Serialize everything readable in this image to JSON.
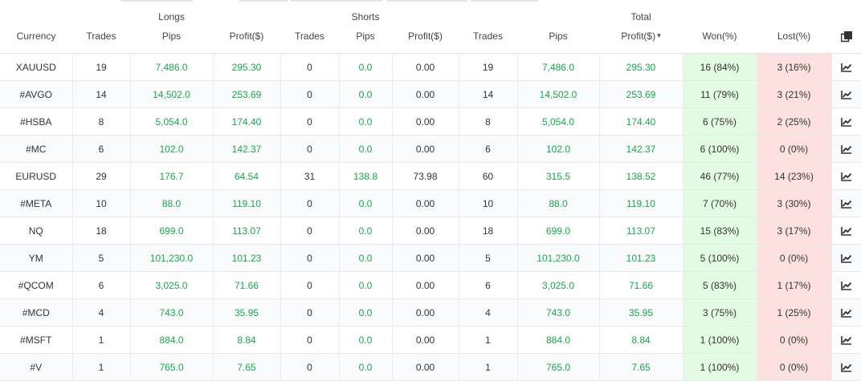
{
  "header": {
    "groups": {
      "longs": "Longs",
      "shorts": "Shorts",
      "total": "Total"
    },
    "columns": {
      "currency": "Currency",
      "long_trades": "Trades",
      "long_pips": "Pips",
      "long_profit": "Profit($)",
      "short_trades": "Trades",
      "short_pips": "Pips",
      "short_profit": "Profit($)",
      "total_trades": "Trades",
      "total_pips": "Pips",
      "total_profit": "Profit($)",
      "won": "Won(%)",
      "lost": "Lost(%)"
    },
    "sort_indicator": "▾",
    "copy_icon": "copy-icon"
  },
  "rows": [
    {
      "currency": "XAUUSD",
      "long_trades": "19",
      "long_pips": "7,486.0",
      "long_profit": "295.30",
      "short_trades": "0",
      "short_pips": "0.0",
      "short_profit": "0.00",
      "total_trades": "19",
      "total_pips": "7,486.0",
      "total_profit": "295.30",
      "won": "16 (84%)",
      "lost": "3 (16%)"
    },
    {
      "currency": "#AVGO",
      "long_trades": "14",
      "long_pips": "14,502.0",
      "long_profit": "253.69",
      "short_trades": "0",
      "short_pips": "0.0",
      "short_profit": "0.00",
      "total_trades": "14",
      "total_pips": "14,502.0",
      "total_profit": "253.69",
      "won": "11 (79%)",
      "lost": "3 (21%)"
    },
    {
      "currency": "#HSBA",
      "long_trades": "8",
      "long_pips": "5,054.0",
      "long_profit": "174.40",
      "short_trades": "0",
      "short_pips": "0.0",
      "short_profit": "0.00",
      "total_trades": "8",
      "total_pips": "5,054.0",
      "total_profit": "174.40",
      "won": "6 (75%)",
      "lost": "2 (25%)"
    },
    {
      "currency": "#MC",
      "long_trades": "6",
      "long_pips": "102.0",
      "long_profit": "142.37",
      "short_trades": "0",
      "short_pips": "0.0",
      "short_profit": "0.00",
      "total_trades": "6",
      "total_pips": "102.0",
      "total_profit": "142.37",
      "won": "6 (100%)",
      "lost": "0 (0%)"
    },
    {
      "currency": "EURUSD",
      "long_trades": "29",
      "long_pips": "176.7",
      "long_profit": "64.54",
      "short_trades": "31",
      "short_pips": "138.8",
      "short_profit": "73.98",
      "total_trades": "60",
      "total_pips": "315.5",
      "total_profit": "138.52",
      "won": "46 (77%)",
      "lost": "14 (23%)"
    },
    {
      "currency": "#META",
      "long_trades": "10",
      "long_pips": "88.0",
      "long_profit": "119.10",
      "short_trades": "0",
      "short_pips": "0.0",
      "short_profit": "0.00",
      "total_trades": "10",
      "total_pips": "88.0",
      "total_profit": "119.10",
      "won": "7 (70%)",
      "lost": "3 (30%)"
    },
    {
      "currency": "NQ",
      "long_trades": "18",
      "long_pips": "699.0",
      "long_profit": "113.07",
      "short_trades": "0",
      "short_pips": "0.0",
      "short_profit": "0.00",
      "total_trades": "18",
      "total_pips": "699.0",
      "total_profit": "113.07",
      "won": "15 (83%)",
      "lost": "3 (17%)"
    },
    {
      "currency": "YM",
      "long_trades": "5",
      "long_pips": "101,230.0",
      "long_profit": "101.23",
      "short_trades": "0",
      "short_pips": "0.0",
      "short_profit": "0.00",
      "total_trades": "5",
      "total_pips": "101,230.0",
      "total_profit": "101.23",
      "won": "5 (100%)",
      "lost": "0 (0%)"
    },
    {
      "currency": "#QCOM",
      "long_trades": "6",
      "long_pips": "3,025.0",
      "long_profit": "71.66",
      "short_trades": "0",
      "short_pips": "0.0",
      "short_profit": "0.00",
      "total_trades": "6",
      "total_pips": "3,025.0",
      "total_profit": "71.66",
      "won": "5 (83%)",
      "lost": "1 (17%)"
    },
    {
      "currency": "#MCD",
      "long_trades": "4",
      "long_pips": "743.0",
      "long_profit": "35.95",
      "short_trades": "0",
      "short_pips": "0.0",
      "short_profit": "0.00",
      "total_trades": "4",
      "total_pips": "743.0",
      "total_profit": "35.95",
      "won": "3 (75%)",
      "lost": "1 (25%)"
    },
    {
      "currency": "#MSFT",
      "long_trades": "1",
      "long_pips": "884.0",
      "long_profit": "8.84",
      "short_trades": "0",
      "short_pips": "0.0",
      "short_profit": "0.00",
      "total_trades": "1",
      "total_pips": "884.0",
      "total_profit": "8.84",
      "won": "1 (100%)",
      "lost": "0 (0%)"
    },
    {
      "currency": "#V",
      "long_trades": "1",
      "long_pips": "765.0",
      "long_profit": "7.65",
      "short_trades": "0",
      "short_pips": "0.0",
      "short_profit": "0.00",
      "total_trades": "1",
      "total_pips": "765.0",
      "total_profit": "7.65",
      "won": "1 (100%)",
      "lost": "0 (0%)"
    }
  ],
  "row_action_icon": "chart-icon",
  "colors": {
    "positive": "#17a84a",
    "won_background": "#e2fbe2",
    "lost_background": "#fde0e0"
  }
}
